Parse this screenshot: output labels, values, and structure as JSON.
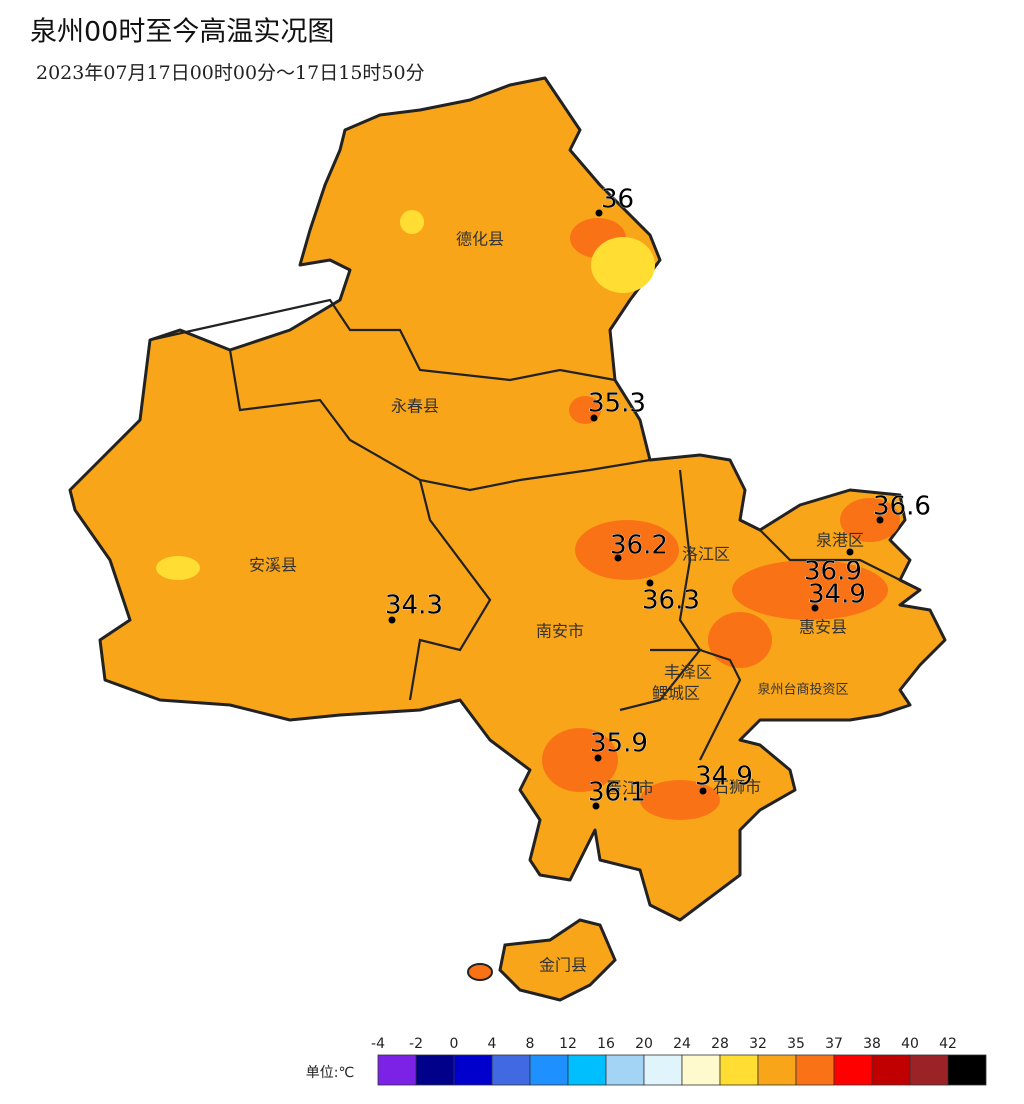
{
  "title": "泉州00时至今高温实况图",
  "subtitle": "2023年07月17日00时00分～17日15时50分",
  "districts": [
    "德化县",
    "永春县",
    "安溪县",
    "南安市",
    "洛江区",
    "泉港区",
    "惠安县",
    "丰泽区",
    "鲤城区",
    "泉州台商投资区",
    "晋江市",
    "石狮市",
    "金门县"
  ],
  "stations": [
    {
      "value": 36
    },
    {
      "value": 35.3
    },
    {
      "value": 36.6
    },
    {
      "value": 36.2
    },
    {
      "value": 36.9
    },
    {
      "value": 34.9
    },
    {
      "value": 36.3
    },
    {
      "value": 34.3
    },
    {
      "value": 35.9
    },
    {
      "value": 36.1
    },
    {
      "value": 34.9
    }
  ],
  "legend": {
    "unit": "单位:℃",
    "ticks": [
      -4,
      -2,
      0,
      4,
      8,
      12,
      16,
      20,
      24,
      28,
      32,
      35,
      37,
      38,
      40,
      42
    ],
    "colors": [
      "#7b22e6",
      "#00008b",
      "#0000cd",
      "#4169e1",
      "#1e90ff",
      "#00bfff",
      "#a3d3f5",
      "#dff4fb",
      "#fffacd",
      "#ffdd33",
      "#f9a51a",
      "#f97316",
      "#ff0000",
      "#c00000",
      "#9b2226",
      "#000000"
    ]
  }
}
